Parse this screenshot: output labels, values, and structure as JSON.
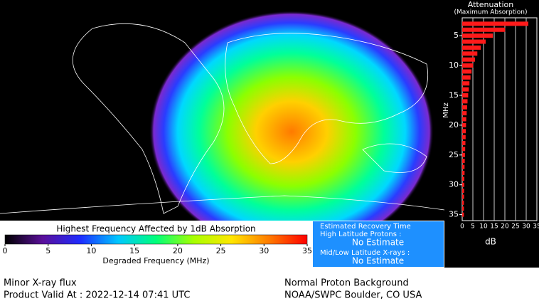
{
  "chart_data": [
    {
      "type": "colorbar",
      "title": "Highest Frequency Affected by 1dB Absorption",
      "x_label": "Degraded Frequency (MHz)",
      "xlim": [
        0,
        35
      ],
      "xticks": [
        0,
        5,
        10,
        15,
        20,
        25,
        30,
        35
      ],
      "colors": [
        "#000000",
        "#5a0f9a",
        "#1e2cff",
        "#00c8ff",
        "#00ff7a",
        "#a8ff00",
        "#ffe600",
        "#ff7a00",
        "#ff0000"
      ]
    },
    {
      "type": "hbar",
      "title": "Attenuation",
      "subtitle": "(Maximum Absorption)",
      "y_label": "MHz",
      "x_label": "dB",
      "color": "#ff1a1a",
      "grid": true,
      "xlim": [
        0,
        35
      ],
      "xticks": [
        0,
        5,
        10,
        15,
        20,
        25,
        30,
        35
      ],
      "ylim": [
        2,
        36
      ],
      "yticks": [
        5,
        10,
        15,
        20,
        25,
        30,
        35
      ],
      "y": [
        3,
        4,
        5,
        6,
        7,
        8,
        9,
        10,
        11,
        12,
        13,
        14,
        15,
        16,
        17,
        18,
        19,
        20,
        21,
        22,
        23,
        24,
        25,
        26,
        27,
        28,
        29,
        30,
        31,
        32,
        33,
        34,
        35
      ],
      "values": [
        31.0,
        20.1,
        14.4,
        11.0,
        8.7,
        7.1,
        6.0,
        5.1,
        4.4,
        3.9,
        3.4,
        3.1,
        2.8,
        2.5,
        2.3,
        2.1,
        1.9,
        1.8,
        1.7,
        1.6,
        1.5,
        1.4,
        1.3,
        1.2,
        1.1,
        1.1,
        1.0,
        1.0,
        0.9,
        0.9,
        0.8,
        0.8,
        0.8
      ]
    }
  ],
  "recovery": {
    "title": "Estimated Recovery Time",
    "high_label": "High Latitude Protons :",
    "high_value": "No Estimate",
    "low_label": "Mid/Low Latitude X-rays :",
    "low_value": "No Estimate"
  },
  "footer": {
    "xray": "Minor X-ray flux",
    "valid": "Product Valid At : 2022-12-14 07:41 UTC",
    "proton": "Normal Proton Background",
    "source": "NOAA/SWPC Boulder, CO USA"
  }
}
